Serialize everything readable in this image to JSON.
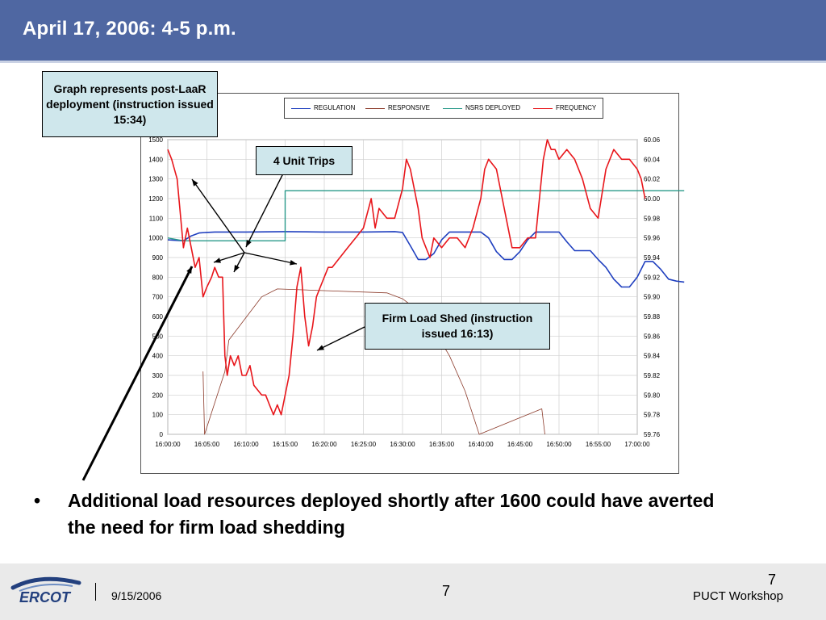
{
  "slide": {
    "title": "April 17, 2006:  4-5 p.m.",
    "bullet": "Additional load resources deployed shortly after 1600 could have averted the need for firm load shedding"
  },
  "callouts": {
    "post_laar": "Graph represents post-LaaR deployment (instruction issued 15:34)",
    "unit_trips": "4 Unit Trips",
    "firm_load_shed": "Firm Load Shed (instruction issued 16:13)"
  },
  "footer": {
    "logo_text": "ERCOT",
    "date": "9/15/2006",
    "page_center": "7",
    "page_right": "7",
    "event": "PUCT Workshop"
  },
  "colors": {
    "header": "#4f67a2",
    "regulation": "#1f3fbf",
    "responsive": "#8b3a2a",
    "nsrs": "#2a9a8a",
    "frequency": "#e8161b",
    "callout_bg": "#cfe7ec"
  },
  "chart_data": {
    "type": "line",
    "title": "",
    "xlabel": "",
    "ylabel": "",
    "legend_position": "top",
    "grid": true,
    "x_ticks": [
      "16:00:00",
      "16:05:00",
      "16:10:00",
      "16:15:00",
      "16:20:00",
      "16:25:00",
      "16:30:00",
      "16:35:00",
      "16:40:00",
      "16:45:00",
      "16:50:00",
      "16:55:00",
      "17:00:00"
    ],
    "y_left": {
      "min": 0,
      "max": 1500,
      "ticks": [
        "0",
        "100",
        "200",
        "300",
        "400",
        "500",
        "600",
        "700",
        "800",
        "900",
        "1000",
        "1100",
        "1200",
        "1300",
        "1400",
        "1500"
      ]
    },
    "y_right": {
      "min": 59.76,
      "max": 60.06,
      "ticks": [
        "59.76",
        "59.78",
        "59.80",
        "59.82",
        "59.84",
        "59.86",
        "59.88",
        "59.90",
        "59.92",
        "59.94",
        "59.96",
        "59.98",
        "60.00",
        "60.02",
        "60.04",
        "60.06"
      ]
    },
    "series": [
      {
        "name": "REGULATION",
        "axis": "left",
        "points": [
          [
            0,
            990
          ],
          [
            2,
            985
          ],
          [
            3,
            1010
          ],
          [
            4,
            1025
          ],
          [
            5,
            1028
          ],
          [
            6,
            1030
          ],
          [
            10,
            1030
          ],
          [
            15,
            1032
          ],
          [
            20,
            1030
          ],
          [
            25,
            1030
          ],
          [
            29,
            1032
          ],
          [
            30,
            1028
          ],
          [
            31,
            960
          ],
          [
            32,
            890
          ],
          [
            33,
            890
          ],
          [
            34,
            920
          ],
          [
            35,
            990
          ],
          [
            36,
            1030
          ],
          [
            38,
            1030
          ],
          [
            40,
            1030
          ],
          [
            41,
            1000
          ],
          [
            42,
            930
          ],
          [
            43,
            890
          ],
          [
            44,
            890
          ],
          [
            45,
            930
          ],
          [
            46,
            990
          ],
          [
            47,
            1030
          ],
          [
            50,
            1030
          ],
          [
            51,
            980
          ],
          [
            52,
            935
          ],
          [
            54,
            935
          ],
          [
            55,
            890
          ],
          [
            56,
            850
          ],
          [
            57,
            790
          ],
          [
            58,
            750
          ],
          [
            59,
            750
          ],
          [
            60,
            800
          ],
          [
            61,
            880
          ],
          [
            62,
            880
          ],
          [
            63,
            840
          ],
          [
            64,
            790
          ],
          [
            65,
            780
          ],
          [
            66,
            775
          ]
        ]
      },
      {
        "name": "RESPONSIVE",
        "axis": "left",
        "points": [
          [
            4.5,
            320
          ],
          [
            4.7,
            0
          ],
          [
            7.3,
            320
          ],
          [
            7.8,
            480
          ],
          [
            12,
            700
          ],
          [
            14,
            740
          ],
          [
            28,
            720
          ],
          [
            30,
            690
          ],
          [
            33,
            600
          ],
          [
            36,
            400
          ],
          [
            38,
            220
          ],
          [
            39.8,
            0
          ],
          [
            47.8,
            130
          ],
          [
            48.2,
            0
          ]
        ]
      },
      {
        "name": "NSRS DEPLOYED",
        "axis": "left",
        "points": [
          [
            0,
            1000
          ],
          [
            2,
            985
          ],
          [
            5,
            985
          ],
          [
            10,
            985
          ],
          [
            15,
            985
          ],
          [
            15,
            1240
          ],
          [
            20,
            1240
          ],
          [
            30,
            1240
          ],
          [
            40,
            1240
          ],
          [
            50,
            1240
          ],
          [
            60,
            1240
          ],
          [
            66,
            1240
          ]
        ]
      },
      {
        "name": "FREQUENCY",
        "axis": "right",
        "points": [
          [
            0,
            60.05
          ],
          [
            0.5,
            60.04
          ],
          [
            1.2,
            60.02
          ],
          [
            2,
            59.95
          ],
          [
            2.5,
            59.97
          ],
          [
            3,
            59.95
          ],
          [
            3.5,
            59.93
          ],
          [
            4,
            59.94
          ],
          [
            4.5,
            59.9
          ],
          [
            5,
            59.91
          ],
          [
            5.6,
            59.92
          ],
          [
            6,
            59.93
          ],
          [
            6.5,
            59.92
          ],
          [
            7,
            59.92
          ],
          [
            7.3,
            59.84
          ],
          [
            7.6,
            59.82
          ],
          [
            8,
            59.84
          ],
          [
            8.5,
            59.83
          ],
          [
            9,
            59.84
          ],
          [
            9.5,
            59.82
          ],
          [
            10,
            59.82
          ],
          [
            10.5,
            59.83
          ],
          [
            11,
            59.81
          ],
          [
            12,
            59.8
          ],
          [
            12.5,
            59.8
          ],
          [
            13,
            59.79
          ],
          [
            13.5,
            59.78
          ],
          [
            14,
            59.79
          ],
          [
            14.5,
            59.78
          ],
          [
            15,
            59.8
          ],
          [
            15.5,
            59.82
          ],
          [
            16,
            59.86
          ],
          [
            16.5,
            59.91
          ],
          [
            17,
            59.93
          ],
          [
            17.5,
            59.88
          ],
          [
            18,
            59.85
          ],
          [
            18.5,
            59.87
          ],
          [
            19,
            59.9
          ],
          [
            19.5,
            59.91
          ],
          [
            20,
            59.92
          ],
          [
            20.5,
            59.93
          ],
          [
            21,
            59.93
          ],
          [
            22,
            59.94
          ],
          [
            23,
            59.95
          ],
          [
            24,
            59.96
          ],
          [
            25,
            59.97
          ],
          [
            26,
            60.0
          ],
          [
            26.5,
            59.97
          ],
          [
            27,
            59.99
          ],
          [
            28,
            59.98
          ],
          [
            29,
            59.98
          ],
          [
            30,
            60.01
          ],
          [
            30.5,
            60.04
          ],
          [
            31,
            60.03
          ],
          [
            32,
            59.99
          ],
          [
            32.5,
            59.96
          ],
          [
            33,
            59.95
          ],
          [
            33.5,
            59.94
          ],
          [
            34,
            59.96
          ],
          [
            35,
            59.95
          ],
          [
            36,
            59.96
          ],
          [
            37,
            59.96
          ],
          [
            38,
            59.95
          ],
          [
            39,
            59.97
          ],
          [
            40,
            60.0
          ],
          [
            40.5,
            60.03
          ],
          [
            41,
            60.04
          ],
          [
            42,
            60.03
          ],
          [
            43,
            59.99
          ],
          [
            44,
            59.95
          ],
          [
            45,
            59.95
          ],
          [
            46,
            59.96
          ],
          [
            47,
            59.96
          ],
          [
            48,
            60.04
          ],
          [
            48.5,
            60.06
          ],
          [
            49,
            60.05
          ],
          [
            49.5,
            60.05
          ],
          [
            50,
            60.04
          ],
          [
            51,
            60.05
          ],
          [
            52,
            60.04
          ],
          [
            53,
            60.02
          ],
          [
            54,
            59.99
          ],
          [
            55,
            59.98
          ],
          [
            56,
            60.03
          ],
          [
            57,
            60.05
          ],
          [
            58,
            60.04
          ],
          [
            59,
            60.04
          ],
          [
            60,
            60.03
          ],
          [
            60.5,
            60.02
          ],
          [
            61,
            60.0
          ]
        ]
      }
    ]
  }
}
